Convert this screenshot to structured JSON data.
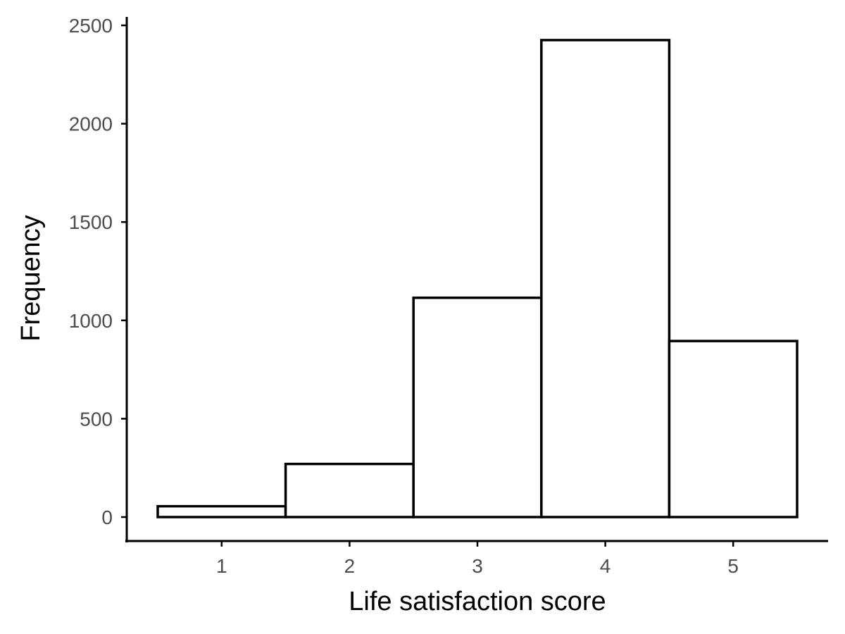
{
  "chart_data": {
    "type": "bar",
    "subtype": "histogram",
    "xlabel": "Life satisfaction score",
    "ylabel": "Frequency",
    "categories": [
      "1",
      "2",
      "3",
      "4",
      "5"
    ],
    "x": [
      1,
      2,
      3,
      4,
      5
    ],
    "values": [
      55,
      270,
      1115,
      2425,
      895
    ],
    "bin_width": 1,
    "xlim": [
      0.5,
      5.5
    ],
    "ylim": [
      0,
      2500
    ],
    "x_ticks": [
      "1",
      "2",
      "3",
      "4",
      "5"
    ],
    "y_ticks": [
      "0",
      "500",
      "1000",
      "1500",
      "2000",
      "2500"
    ],
    "grid": false,
    "legend": "none",
    "colors": {
      "bar_fill": "#ffffff",
      "bar_stroke": "#000000",
      "tick_text": "#4d4d4d"
    }
  }
}
